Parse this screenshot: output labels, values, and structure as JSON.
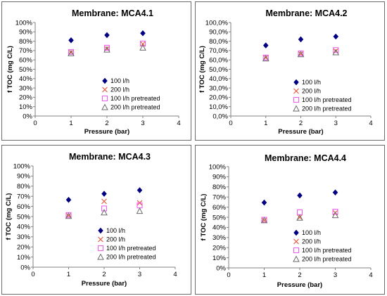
{
  "colors": {
    "series_100": "#000080",
    "series_200": "#e8553a",
    "series_100_pre": "#f060f0",
    "series_200_pre": "#6b6b6b",
    "frame": "#6b6b6b"
  },
  "chart_data": [
    {
      "type": "scatter",
      "title": "Membrane: MCA4.1",
      "xlabel": "Pressure (bar)",
      "ylabel": "f TOC (mg C/L)",
      "xlim": [
        0,
        4
      ],
      "ylim": [
        0,
        1.0
      ],
      "x_ticks": [
        "0",
        "1",
        "2",
        "3",
        "4"
      ],
      "y_ticks": [
        "0%",
        "10%",
        "20%",
        "30%",
        "40%",
        "50%",
        "60%",
        "70%",
        "80%",
        "90%",
        "100%"
      ],
      "legend_position": "bottom-right",
      "series": [
        {
          "name": "100 l/h",
          "marker": "diamond",
          "color": "#000080",
          "x": [
            1,
            2,
            3
          ],
          "y": [
            0.81,
            0.865,
            0.885
          ]
        },
        {
          "name": "200 l/h",
          "marker": "x",
          "color": "#e8553a",
          "x": [
            1,
            2,
            3
          ],
          "y": [
            0.68,
            0.72,
            0.77
          ]
        },
        {
          "name": "100 l/h pretreated",
          "marker": "square",
          "color": "#f060f0",
          "x": [
            1,
            2,
            3
          ],
          "y": [
            0.685,
            0.73,
            0.775
          ]
        },
        {
          "name": "200 l/h pretreated",
          "marker": "triangle",
          "color": "#6b6b6b",
          "x": [
            1,
            2,
            3
          ],
          "y": [
            0.67,
            0.71,
            0.73
          ]
        }
      ]
    },
    {
      "type": "scatter",
      "title": "Membrane: MCA4.2",
      "xlabel": "Pressure (bar)",
      "ylabel": "f TOC (mg C/L)",
      "xlim": [
        0,
        4
      ],
      "ylim": [
        0,
        1.0
      ],
      "x_ticks": [
        "0",
        "1",
        "2",
        "3",
        "4"
      ],
      "y_ticks": [
        "0,0%",
        "10,0%",
        "20,0%",
        "30,0%",
        "40,0%",
        "50,0%",
        "60,0%",
        "70,0%",
        "80,0%",
        "90,0%",
        "100,0%"
      ],
      "legend_position": "bottom-right",
      "series": [
        {
          "name": "100 l/h",
          "marker": "diamond",
          "color": "#000080",
          "x": [
            1,
            2,
            3
          ],
          "y": [
            0.755,
            0.82,
            0.85
          ]
        },
        {
          "name": "200 l/h",
          "marker": "x",
          "color": "#e8553a",
          "x": [
            1,
            2,
            3
          ],
          "y": [
            0.625,
            0.665,
            0.695
          ]
        },
        {
          "name": "100 l/h pretreated",
          "marker": "square",
          "color": "#f060f0",
          "x": [
            1,
            2,
            3
          ],
          "y": [
            0.625,
            0.67,
            0.705
          ]
        },
        {
          "name": "200 l/h pretreated",
          "marker": "triangle",
          "color": "#6b6b6b",
          "x": [
            1,
            2,
            3
          ],
          "y": [
            0.615,
            0.66,
            0.68
          ]
        }
      ]
    },
    {
      "type": "scatter",
      "title": "Membrane: MCA4.3",
      "xlabel": "Pressure (bar)",
      "ylabel": "f TOC (mg C/L)",
      "xlim": [
        0,
        4
      ],
      "ylim": [
        0,
        1.0
      ],
      "x_ticks": [
        "0",
        "1",
        "2",
        "3",
        "4"
      ],
      "y_ticks": [
        "0%",
        "10%",
        "20%",
        "30%",
        "40%",
        "50%",
        "60%",
        "70%",
        "80%",
        "90%",
        "100%"
      ],
      "legend_position": "bottom-right",
      "series": [
        {
          "name": "100 l/h",
          "marker": "diamond",
          "color": "#000080",
          "x": [
            1,
            2,
            3
          ],
          "y": [
            0.665,
            0.725,
            0.76
          ]
        },
        {
          "name": "200 l/h",
          "marker": "x",
          "color": "#e8553a",
          "x": [
            1,
            2,
            3
          ],
          "y": [
            0.51,
            0.65,
            0.635
          ]
        },
        {
          "name": "100 l/h pretreated",
          "marker": "square",
          "color": "#f060f0",
          "x": [
            1,
            2,
            3
          ],
          "y": [
            0.515,
            0.58,
            0.61
          ]
        },
        {
          "name": "200 l/h pretreated",
          "marker": "triangle",
          "color": "#6b6b6b",
          "x": [
            1,
            2,
            3
          ],
          "y": [
            0.505,
            0.54,
            0.555
          ]
        }
      ]
    },
    {
      "type": "scatter",
      "title": "Membrane: MCA4.4",
      "xlabel": "Pressure (bar)",
      "ylabel": "f TOC (mg C/L)",
      "xlim": [
        0,
        4
      ],
      "ylim": [
        0,
        1.0
      ],
      "x_ticks": [
        "0",
        "1",
        "2",
        "3",
        "4"
      ],
      "y_ticks": [
        "0%",
        "10%",
        "20%",
        "30%",
        "40%",
        "50%",
        "60%",
        "70%",
        "80%",
        "90%",
        "100%"
      ],
      "legend_position": "bottom-right",
      "series": [
        {
          "name": "100 l/h",
          "marker": "diamond",
          "color": "#000080",
          "x": [
            1,
            2,
            3
          ],
          "y": [
            0.645,
            0.715,
            0.745
          ]
        },
        {
          "name": "200 l/h",
          "marker": "x",
          "color": "#e8553a",
          "x": [
            1,
            2,
            3
          ],
          "y": [
            0.47,
            0.5,
            0.545
          ]
        },
        {
          "name": "100 l/h pretreated",
          "marker": "square",
          "color": "#f060f0",
          "x": [
            1,
            2,
            3
          ],
          "y": [
            0.475,
            0.55,
            0.555
          ]
        },
        {
          "name": "200 l/h pretreated",
          "marker": "triangle",
          "color": "#6b6b6b",
          "x": [
            1,
            2,
            3
          ],
          "y": [
            0.47,
            0.495,
            0.52
          ]
        }
      ]
    }
  ]
}
